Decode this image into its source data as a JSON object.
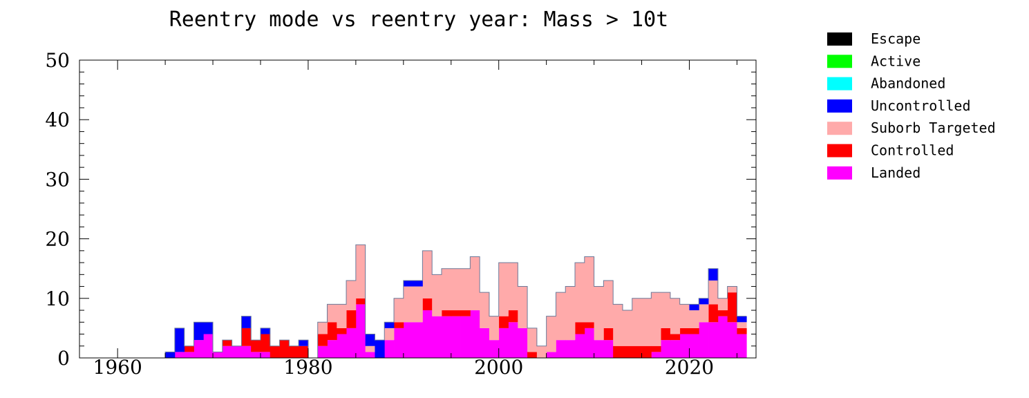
{
  "chart_data": {
    "type": "bar",
    "stacked": true,
    "title": "Reentry mode vs reentry year: Mass > 10t",
    "xlabel": "",
    "ylabel": "",
    "xlim": [
      1956,
      2027
    ],
    "ylim": [
      0,
      50
    ],
    "x_ticks": [
      1960,
      1980,
      2000,
      2020
    ],
    "y_ticks": [
      0,
      10,
      20,
      30,
      40,
      50
    ],
    "legend_position": "right",
    "grid": false,
    "x": [
      1965,
      1966,
      1967,
      1968,
      1969,
      1970,
      1971,
      1972,
      1973,
      1974,
      1975,
      1976,
      1977,
      1978,
      1979,
      1980,
      1981,
      1982,
      1983,
      1984,
      1985,
      1986,
      1987,
      1988,
      1989,
      1990,
      1991,
      1992,
      1993,
      1994,
      1995,
      1996,
      1997,
      1998,
      1999,
      2000,
      2001,
      2002,
      2003,
      2004,
      2005,
      2006,
      2007,
      2008,
      2009,
      2010,
      2011,
      2012,
      2013,
      2014,
      2015,
      2016,
      2017,
      2018,
      2019,
      2020,
      2021,
      2022,
      2023,
      2024,
      2025
    ],
    "series": [
      {
        "name": "Landed",
        "color": "#ff00ff",
        "values": [
          0,
          1,
          1,
          3,
          4,
          1,
          2,
          2,
          2,
          1,
          1,
          0,
          0,
          0,
          0,
          0,
          2,
          3,
          4,
          5,
          9,
          1,
          0,
          3,
          5,
          6,
          6,
          8,
          7,
          7,
          7,
          7,
          8,
          5,
          3,
          5,
          6,
          5,
          0,
          0,
          1,
          3,
          3,
          4,
          5,
          3,
          3,
          0,
          0,
          0,
          0,
          1,
          3,
          3,
          4,
          4,
          6,
          6,
          7,
          6,
          4
        ]
      },
      {
        "name": "Controlled",
        "color": "#ff0000",
        "values": [
          0,
          0,
          1,
          0,
          0,
          0,
          1,
          0,
          3,
          2,
          3,
          2,
          3,
          2,
          2,
          0,
          2,
          3,
          1,
          3,
          1,
          0,
          0,
          0,
          1,
          0,
          0,
          2,
          0,
          1,
          1,
          1,
          0,
          0,
          0,
          2,
          2,
          0,
          1,
          0,
          0,
          0,
          0,
          2,
          1,
          0,
          2,
          2,
          2,
          2,
          2,
          1,
          2,
          1,
          1,
          1,
          0,
          3,
          1,
          5,
          1
        ]
      },
      {
        "name": "Suborb Targeted",
        "color": "#ffaaaa",
        "values": [
          0,
          0,
          0,
          0,
          0,
          0,
          0,
          0,
          0,
          0,
          0,
          0,
          0,
          0,
          0,
          0,
          2,
          3,
          4,
          5,
          9,
          1,
          0,
          2,
          4,
          6,
          6,
          8,
          7,
          7,
          7,
          7,
          9,
          6,
          4,
          9,
          8,
          7,
          4,
          2,
          6,
          8,
          9,
          10,
          11,
          9,
          8,
          7,
          6,
          8,
          8,
          9,
          6,
          6,
          4,
          3,
          3,
          4,
          2,
          1,
          1
        ]
      },
      {
        "name": "Uncontrolled",
        "color": "#0000ff",
        "values": [
          1,
          4,
          0,
          3,
          2,
          0,
          0,
          0,
          2,
          0,
          1,
          0,
          0,
          0,
          1,
          0,
          0,
          0,
          0,
          0,
          0,
          2,
          3,
          1,
          0,
          1,
          1,
          0,
          0,
          0,
          0,
          0,
          0,
          0,
          0,
          0,
          0,
          0,
          0,
          0,
          0,
          0,
          0,
          0,
          0,
          0,
          0,
          0,
          0,
          0,
          0,
          0,
          0,
          0,
          0,
          1,
          1,
          2,
          0,
          0,
          1
        ]
      },
      {
        "name": "Abandoned",
        "color": "#00ffff",
        "values": [
          0,
          0,
          0,
          0,
          0,
          0,
          0,
          0,
          0,
          0,
          0,
          0,
          0,
          0,
          0,
          0,
          0,
          0,
          0,
          0,
          0,
          0,
          0,
          0,
          0,
          0,
          0,
          0,
          0,
          0,
          0,
          0,
          0,
          0,
          0,
          0,
          0,
          0,
          0,
          0,
          0,
          0,
          0,
          0,
          0,
          0,
          0,
          0,
          0,
          0,
          0,
          0,
          0,
          0,
          0,
          0,
          0,
          0,
          0,
          0,
          0
        ]
      },
      {
        "name": "Active",
        "color": "#00ff00",
        "values": [
          0,
          0,
          0,
          0,
          0,
          0,
          0,
          0,
          0,
          0,
          0,
          0,
          0,
          0,
          0,
          0,
          0,
          0,
          0,
          0,
          0,
          0,
          0,
          0,
          0,
          0,
          0,
          0,
          0,
          0,
          0,
          0,
          0,
          0,
          0,
          0,
          0,
          0,
          0,
          0,
          0,
          0,
          0,
          0,
          0,
          0,
          0,
          0,
          0,
          0,
          0,
          0,
          0,
          0,
          0,
          0,
          0,
          0,
          0,
          0,
          0
        ]
      },
      {
        "name": "Escape",
        "color": "#000000",
        "values": [
          0,
          0,
          0,
          0,
          0,
          0,
          0,
          0,
          0,
          0,
          0,
          0,
          0,
          0,
          0,
          0,
          0,
          0,
          0,
          0,
          0,
          0,
          0,
          0,
          0,
          0,
          0,
          0,
          0,
          0,
          0,
          0,
          0,
          0,
          0,
          0,
          0,
          0,
          0,
          0,
          0,
          0,
          0,
          0,
          0,
          0,
          0,
          0,
          0,
          0,
          0,
          0,
          0,
          0,
          0,
          0,
          0,
          0,
          0,
          0,
          0
        ]
      }
    ],
    "legend_order": [
      "Escape",
      "Active",
      "Abandoned",
      "Uncontrolled",
      "Suborb Targeted",
      "Controlled",
      "Landed"
    ]
  }
}
